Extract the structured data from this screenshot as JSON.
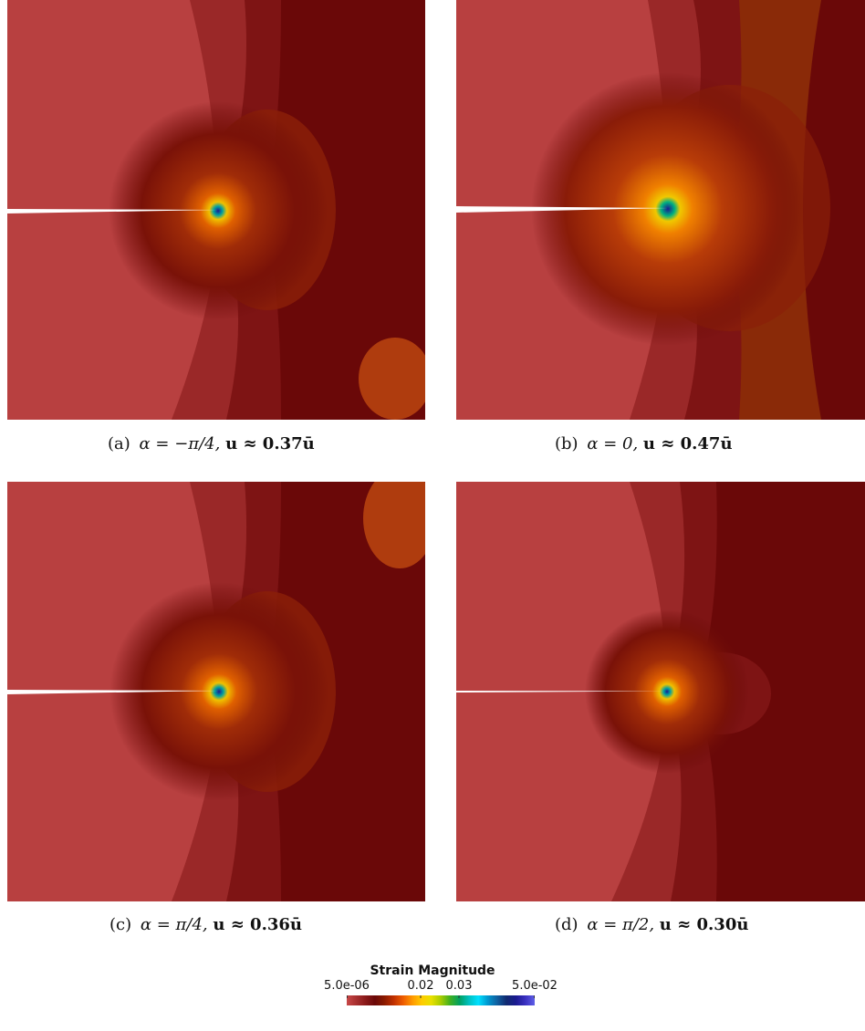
{
  "panels": [
    {
      "id": "a",
      "label": "(a)",
      "alpha": "α = −π/4,",
      "u": "u ≈ 0.37ū"
    },
    {
      "id": "b",
      "label": "(b)",
      "alpha": "α = 0,",
      "u": "u ≈ 0.47ū"
    },
    {
      "id": "c",
      "label": "(c)",
      "alpha": "α = π/4,",
      "u": "u ≈ 0.36ū"
    },
    {
      "id": "d",
      "label": "(d)",
      "alpha": "α = π/2,",
      "u": "u ≈ 0.30ū"
    }
  ],
  "colorbar": {
    "title": "Strain Magnitude",
    "ticks": [
      "5.0e-06",
      "0.02",
      "0.03",
      "5.0e-02"
    ],
    "stops": [
      "#c84848",
      "#a83030",
      "#8a1a1a",
      "#6a0808",
      "#8a1a00",
      "#c03000",
      "#ee5c00",
      "#ff9a00",
      "#ffcc00",
      "#e8e000",
      "#a8cc00",
      "#40b020",
      "#00a060",
      "#00c0c0",
      "#00e0ff",
      "#0098d0",
      "#1060a0",
      "#102a70",
      "#1a1a90",
      "#3a30c0",
      "#6060e8"
    ]
  },
  "colors": {
    "field_base": "#b84040",
    "field_dark": "#6a0a0a",
    "crack": "#ffffff"
  }
}
